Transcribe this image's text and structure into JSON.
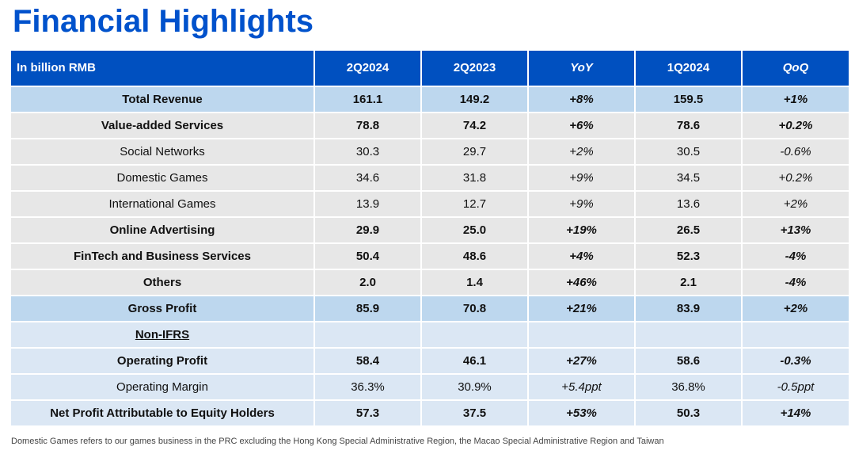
{
  "title": "Financial Highlights",
  "table": {
    "header": {
      "label": "In billion RMB",
      "columns": [
        "2Q2024",
        "2Q2023",
        "YoY",
        "1Q2024",
        "QoQ"
      ]
    },
    "rows": [
      {
        "label": "Total Revenue",
        "level": 0,
        "style": "highlight",
        "bold": true,
        "values": [
          "161.1",
          "149.2",
          "+8%",
          "159.5",
          "+1%"
        ]
      },
      {
        "label": "Value-added Services",
        "level": 1,
        "style": "grey",
        "bold": true,
        "values": [
          "78.8",
          "74.2",
          "+6%",
          "78.6",
          "+0.2%"
        ]
      },
      {
        "label": "Social Networks",
        "level": 2,
        "style": "grey",
        "bold": false,
        "values": [
          "30.3",
          "29.7",
          "+2%",
          "30.5",
          "-0.6%"
        ]
      },
      {
        "label": "Domestic Games",
        "level": 2,
        "style": "grey",
        "bold": false,
        "values": [
          "34.6",
          "31.8",
          "+9%",
          "34.5",
          "+0.2%"
        ]
      },
      {
        "label": "International Games",
        "level": 2,
        "style": "grey",
        "bold": false,
        "values": [
          "13.9",
          "12.7",
          "+9%",
          "13.6",
          "+2%"
        ]
      },
      {
        "label": "Online Advertising",
        "level": 1,
        "style": "grey",
        "bold": true,
        "values": [
          "29.9",
          "25.0",
          "+19%",
          "26.5",
          "+13%"
        ]
      },
      {
        "label": "FinTech and Business Services",
        "level": 1,
        "style": "grey",
        "bold": true,
        "values": [
          "50.4",
          "48.6",
          "+4%",
          "52.3",
          "-4%"
        ]
      },
      {
        "label": "Others",
        "level": 1,
        "style": "grey",
        "bold": true,
        "values": [
          "2.0",
          "1.4",
          "+46%",
          "2.1",
          "-4%"
        ]
      },
      {
        "label": "Gross Profit",
        "level": 0,
        "style": "highlight",
        "bold": true,
        "values": [
          "85.9",
          "70.8",
          "+21%",
          "83.9",
          "+2%"
        ]
      },
      {
        "label": "Non-IFRS",
        "level": 0,
        "style": "pale",
        "bold": true,
        "section": true,
        "values": []
      },
      {
        "label": "Operating Profit",
        "level": 0,
        "style": "pale",
        "bold": true,
        "values": [
          "58.4",
          "46.1",
          "+27%",
          "58.6",
          "-0.3%"
        ]
      },
      {
        "label": "Operating Margin",
        "level": 0,
        "style": "pale",
        "bold": false,
        "values": [
          "36.3%",
          "30.9%",
          "+5.4ppt",
          "36.8%",
          "-0.5ppt"
        ]
      },
      {
        "label": "Net Profit Attributable to Equity Holders",
        "level": 0,
        "style": "pale",
        "bold": true,
        "values": [
          "57.3",
          "37.5",
          "+53%",
          "50.3",
          "+14%"
        ]
      }
    ]
  },
  "footnote": "Domestic Games refers to our games business in the PRC excluding the Hong Kong Special Administrative Region, the Macao Special Administrative Region and Taiwan",
  "colors": {
    "title": "#0052cc",
    "header_bg": "#0050c0",
    "highlight_bg": "#bdd7ee",
    "grey_bg": "#e7e7e7",
    "pale_bg": "#dbe7f4"
  }
}
